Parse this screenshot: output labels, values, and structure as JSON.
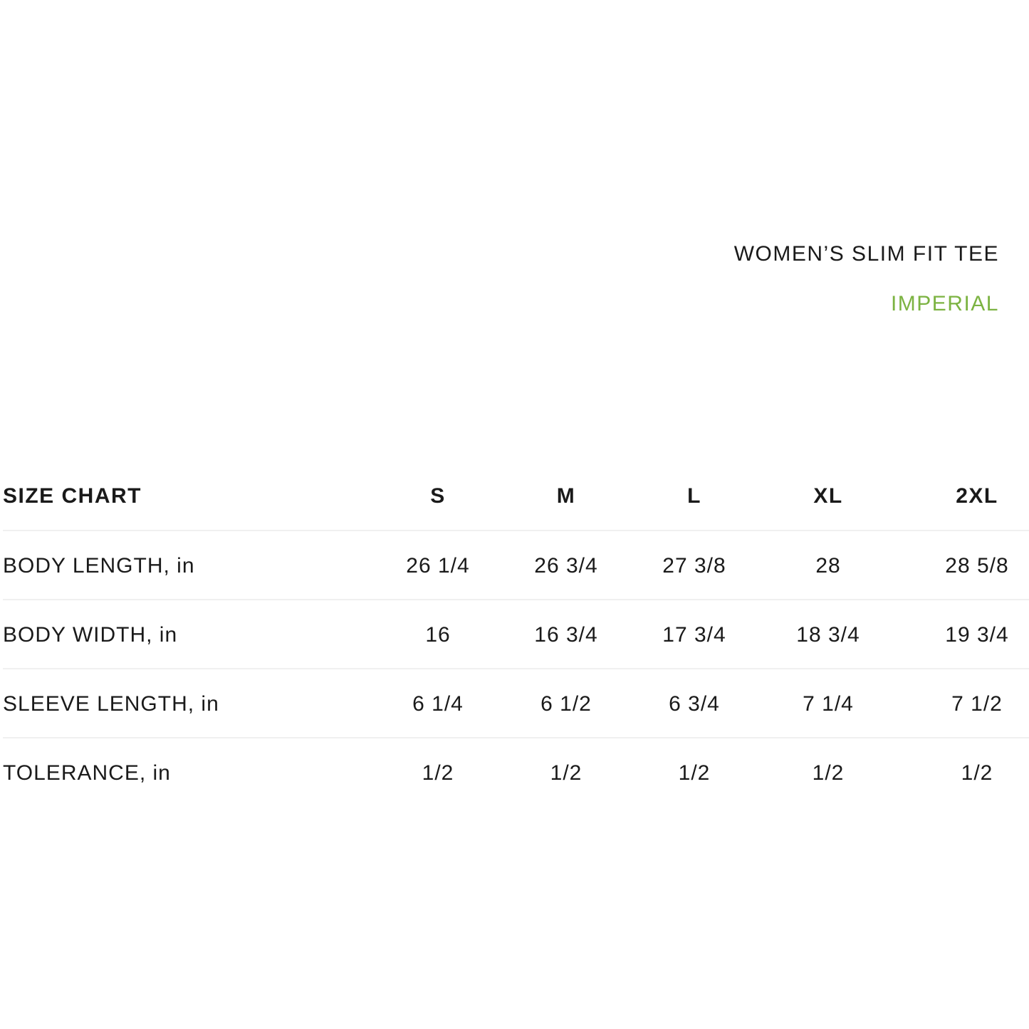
{
  "title": "WOMEN’S SLIM FIT TEE",
  "subtitle": "IMPERIAL",
  "colors": {
    "accent": "#7cb342",
    "text": "#1a1a1a",
    "divider": "#f0f0f0"
  },
  "table": {
    "header": {
      "label": "SIZE CHART",
      "sizes": [
        "S",
        "M",
        "L",
        "XL",
        "2XL"
      ]
    },
    "rows": [
      {
        "label": "BODY LENGTH, in",
        "values": [
          "26 1/4",
          "26 3/4",
          "27 3/8",
          "28",
          "28 5/8"
        ]
      },
      {
        "label": "BODY WIDTH, in",
        "values": [
          "16",
          "16 3/4",
          "17 3/4",
          "18 3/4",
          "19 3/4"
        ]
      },
      {
        "label": "SLEEVE LENGTH, in",
        "values": [
          "6 1/4",
          "6 1/2",
          "6 3/4",
          "7 1/4",
          "7 1/2"
        ]
      },
      {
        "label": "TOLERANCE, in",
        "values": [
          "1/2",
          "1/2",
          "1/2",
          "1/2",
          "1/2"
        ]
      }
    ]
  }
}
